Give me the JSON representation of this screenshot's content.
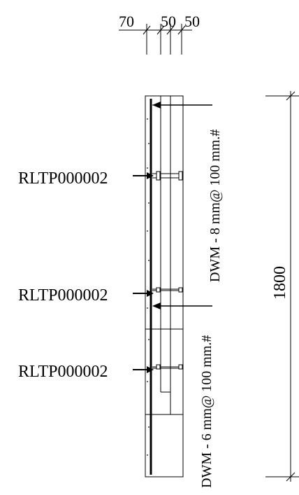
{
  "dimensions": {
    "top": [
      "70",
      "50",
      "50"
    ],
    "height": "1800"
  },
  "tags": [
    {
      "label": "RLTP000002"
    },
    {
      "label": "RLTP000002"
    },
    {
      "label": "RLTP000002"
    }
  ],
  "mesh_labels": {
    "upper": "DWM - 8 mm@ 100 mm.#",
    "lower": "DWM - 6 mm@ 100 mm.#"
  }
}
